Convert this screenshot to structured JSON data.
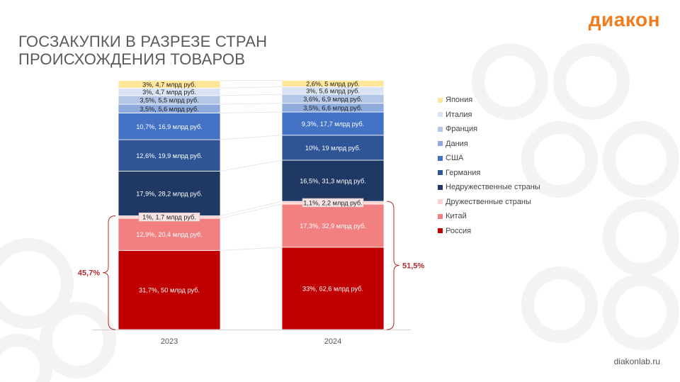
{
  "header": {
    "title_line1": "ГОСЗАКУПКИ В РАЗРЕЗЕ СТРАН",
    "title_line2": "ПРОИСХОЖДЕНИЯ ТОВАРОВ",
    "logo": "диакон"
  },
  "footer": {
    "site": "diakonlab.ru"
  },
  "colors": {
    "accent": "#f07c1e",
    "bracket": "#b32b2b"
  },
  "chart_data": {
    "type": "bar",
    "stacked": true,
    "categories": [
      "2023",
      "2024"
    ],
    "series": [
      {
        "name": "Россия",
        "color": "#c00000",
        "label_color": "#ffffff",
        "values": [
          31.7,
          33.0
        ],
        "labels": [
          "31,7%, 50 млрд руб.",
          "33%, 62,6 млрд руб."
        ]
      },
      {
        "name": "Китай",
        "color": "#f28080",
        "label_color": "#ffffff",
        "values": [
          12.9,
          17.3
        ],
        "labels": [
          "12,9%, 20,4 млрд руб.",
          "17,3%, 32,9 млрд руб."
        ]
      },
      {
        "name": "Дружественные страны",
        "color": "#fbd0d0",
        "label_color": "#222222",
        "values": [
          1.0,
          1.1
        ],
        "labels": [
          "1%, 1,7 млрд руб.",
          "1,1%, 2,2 млрд руб."
        ]
      },
      {
        "name": "Недружественные страны",
        "color": "#1f3864",
        "label_color": "#ffffff",
        "values": [
          17.9,
          16.5
        ],
        "labels": [
          "17,9%, 28,2 млрд руб.",
          "16,5%, 31,3 млрд руб."
        ]
      },
      {
        "name": "Германия",
        "color": "#2f5597",
        "label_color": "#ffffff",
        "values": [
          12.6,
          10.0
        ],
        "labels": [
          "12,6%, 19,9 млрд руб.",
          "10%, 19 млрд руб."
        ]
      },
      {
        "name": "США",
        "color": "#4472c4",
        "label_color": "#ffffff",
        "values": [
          10.7,
          9.3
        ],
        "labels": [
          "10,7%, 16,9 млрд руб.",
          "9,3%, 17,7 млрд руб."
        ]
      },
      {
        "name": "Дания",
        "color": "#8faadc",
        "label_color": "#222222",
        "values": [
          3.5,
          3.5
        ],
        "labels": [
          "3,5%, 5,6 млрд руб.",
          "3,5%, 6,6 млрд руб."
        ]
      },
      {
        "name": "Франция",
        "color": "#b4c7e7",
        "label_color": "#222222",
        "values": [
          3.5,
          3.6
        ],
        "labels": [
          "3,5%, 5,5 млрд руб.",
          "3,6%, 6,9 млрд руб."
        ]
      },
      {
        "name": "Италия",
        "color": "#dae3f3",
        "label_color": "#222222",
        "values": [
          3.0,
          3.0
        ],
        "labels": [
          "3%, 4,7 млрд руб.",
          "3%, 5,6 млрд руб."
        ]
      },
      {
        "name": "Япония",
        "color": "#ffe699",
        "label_color": "#222222",
        "values": [
          3.0,
          2.6
        ],
        "labels": [
          "3%, 4,7 млрд руб.",
          "2,6%, 5 млрд руб."
        ]
      }
    ],
    "brackets": [
      {
        "category": "2023",
        "label": "45,7%"
      },
      {
        "category": "2024",
        "label": "51,5%"
      }
    ],
    "legend_position": "right",
    "legend_order": [
      "Япония",
      "Италия",
      "Франция",
      "Дания",
      "США",
      "Германия",
      "Недружественные страны",
      "Дружественные страны",
      "Китай",
      "Россия"
    ],
    "grid": false
  }
}
